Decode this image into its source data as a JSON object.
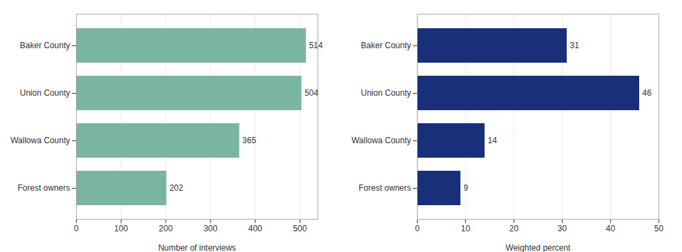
{
  "chart_data": [
    {
      "type": "bar",
      "orientation": "horizontal",
      "categories": [
        "Baker County",
        "Union County",
        "Wallowa County",
        "Forest owners"
      ],
      "values": [
        514,
        504,
        365,
        202
      ],
      "color": "#7ab5a0",
      "xlabel": "Number of interviews",
      "xlim": [
        0,
        540
      ],
      "xticks": [
        0,
        100,
        200,
        300,
        400,
        500
      ],
      "grid": true,
      "data_labels": true
    },
    {
      "type": "bar",
      "orientation": "horizontal",
      "categories": [
        "Baker County",
        "Union County",
        "Wallowa County",
        "Forest owners"
      ],
      "values": [
        31,
        46,
        14,
        9
      ],
      "color": "#1a2f7a",
      "xlabel": "Weighted percent",
      "xlim": [
        0,
        50
      ],
      "xticks": [
        0,
        10,
        20,
        30,
        40,
        50
      ],
      "grid": true,
      "data_labels": true
    }
  ]
}
